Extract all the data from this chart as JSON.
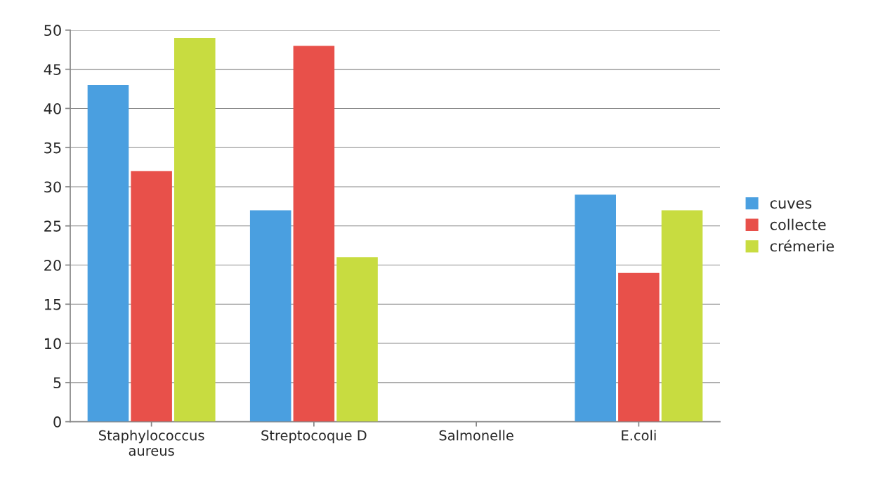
{
  "chart_data": {
    "type": "bar",
    "categories": [
      "Staphylococcus\naureus",
      "Streptocoque D",
      "Salmonelle",
      "E.coli"
    ],
    "series": [
      {
        "name": "cuves",
        "color": "#4a9fe0",
        "values": [
          43,
          27,
          0,
          29
        ]
      },
      {
        "name": "collecte",
        "color": "#e8504a",
        "values": [
          32,
          48,
          0,
          19
        ]
      },
      {
        "name": "crémerie",
        "color": "#c8dc40",
        "values": [
          49,
          21,
          0,
          27
        ]
      }
    ],
    "ylim": [
      0,
      50
    ],
    "yticks": [
      0,
      5,
      10,
      15,
      20,
      25,
      30,
      35,
      40,
      45,
      50
    ],
    "grid": "y",
    "legend": "right"
  }
}
